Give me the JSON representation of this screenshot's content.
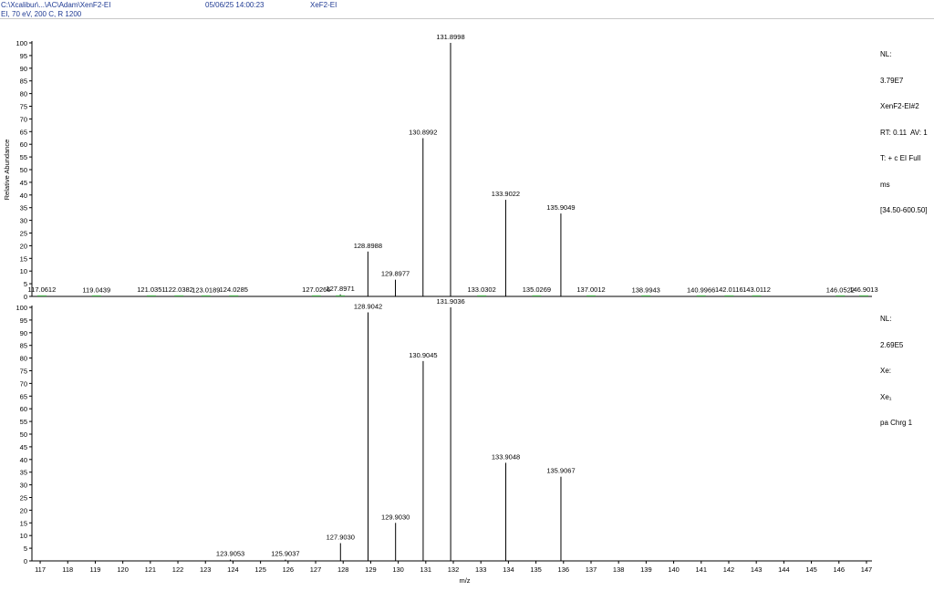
{
  "header": {
    "file_path": "C:\\Xcalibur\\...\\AC\\Adam\\XenF2-EI",
    "conditions": "EI, 70 eV, 200 C, R 1200",
    "datetime": "05/06/25 14:00:23",
    "sample_name": "XeF2-EI"
  },
  "top_info": {
    "lines": [
      "NL:",
      "3.79E7",
      "XenF2-EI#2",
      "RT: 0.11  AV: 1",
      "T: + c EI Full",
      "ms",
      "[34.50-600.50]"
    ]
  },
  "bottom_info": {
    "lines": [
      "NL:",
      "2.69E5",
      "Xe:",
      "Xe₁",
      "pa Chrg 1"
    ]
  },
  "chart_data": [
    {
      "type": "bar",
      "title": "",
      "xlabel": "",
      "ylabel": "Relative Abundance",
      "xlim": [
        116.7,
        147.2
      ],
      "ylim": [
        0,
        100
      ],
      "yticks": [
        0,
        5,
        10,
        15,
        20,
        25,
        30,
        35,
        40,
        45,
        50,
        55,
        60,
        65,
        70,
        75,
        80,
        85,
        90,
        95,
        100
      ],
      "peaks": [
        {
          "mz": 117.0612,
          "intensity": 0.3,
          "label": "117.0612"
        },
        {
          "mz": 119.0439,
          "intensity": 0.2,
          "label": "119.0439"
        },
        {
          "mz": 121.0351,
          "intensity": 0.3,
          "label": "121.0351"
        },
        {
          "mz": 122.0382,
          "intensity": 0.3,
          "label": "122.0382"
        },
        {
          "mz": 123.0189,
          "intensity": 0.2,
          "label": "123.0189"
        },
        {
          "mz": 124.0285,
          "intensity": 0.3,
          "label": "124.0285"
        },
        {
          "mz": 127.0266,
          "intensity": 0.3,
          "label": "127.0266"
        },
        {
          "mz": 127.8971,
          "intensity": 0.8,
          "label": "127.8971"
        },
        {
          "mz": 128.8988,
          "intensity": 17.7,
          "label": "128.8988"
        },
        {
          "mz": 129.8977,
          "intensity": 6.6,
          "label": "129.8977"
        },
        {
          "mz": 130.8992,
          "intensity": 62.4,
          "label": "130.8992"
        },
        {
          "mz": 131.8998,
          "intensity": 100,
          "label": "131.8998"
        },
        {
          "mz": 133.0302,
          "intensity": 0.3,
          "label": "133.0302"
        },
        {
          "mz": 133.9022,
          "intensity": 38.1,
          "label": "133.9022"
        },
        {
          "mz": 135.0269,
          "intensity": 0.3,
          "label": "135.0269"
        },
        {
          "mz": 135.9049,
          "intensity": 32.7,
          "label": "135.9049"
        },
        {
          "mz": 137.0012,
          "intensity": 0.3,
          "label": "137.0012"
        },
        {
          "mz": 138.9943,
          "intensity": 0.2,
          "label": "138.9943"
        },
        {
          "mz": 140.9966,
          "intensity": 0.2,
          "label": "140.9966"
        },
        {
          "mz": 142.0116,
          "intensity": 0.3,
          "label": "142.0116"
        },
        {
          "mz": 143.0112,
          "intensity": 0.3,
          "label": "143.0112"
        },
        {
          "mz": 146.0522,
          "intensity": 0.2,
          "label": "146.0522"
        },
        {
          "mz": 146.9013,
          "intensity": 0.3,
          "label": "146.9013"
        }
      ]
    },
    {
      "type": "bar",
      "title": "",
      "xlabel": "m/z",
      "ylabel": "",
      "xlim": [
        116.7,
        147.2
      ],
      "ylim": [
        0,
        100
      ],
      "yticks": [
        0,
        5,
        10,
        15,
        20,
        25,
        30,
        35,
        40,
        45,
        50,
        55,
        60,
        65,
        70,
        75,
        80,
        85,
        90,
        95,
        100
      ],
      "xticks": [
        117,
        118,
        119,
        120,
        121,
        122,
        123,
        124,
        125,
        126,
        127,
        128,
        129,
        130,
        131,
        132,
        133,
        134,
        135,
        136,
        137,
        138,
        139,
        140,
        141,
        142,
        143,
        144,
        145,
        146,
        147
      ],
      "peaks": [
        {
          "mz": 123.9053,
          "intensity": 0.5,
          "label": "123.9053"
        },
        {
          "mz": 125.9037,
          "intensity": 0.5,
          "label": "125.9037"
        },
        {
          "mz": 127.903,
          "intensity": 7.0,
          "label": "127.9030"
        },
        {
          "mz": 128.9042,
          "intensity": 98.0,
          "label": "128.9042"
        },
        {
          "mz": 129.903,
          "intensity": 15.0,
          "label": "129.9030"
        },
        {
          "mz": 130.9045,
          "intensity": 78.8,
          "label": "130.9045"
        },
        {
          "mz": 131.9036,
          "intensity": 100,
          "label": "131.9036"
        },
        {
          "mz": 133.9048,
          "intensity": 38.7,
          "label": "133.9048"
        },
        {
          "mz": 135.9067,
          "intensity": 33.2,
          "label": "135.9067"
        }
      ]
    }
  ]
}
